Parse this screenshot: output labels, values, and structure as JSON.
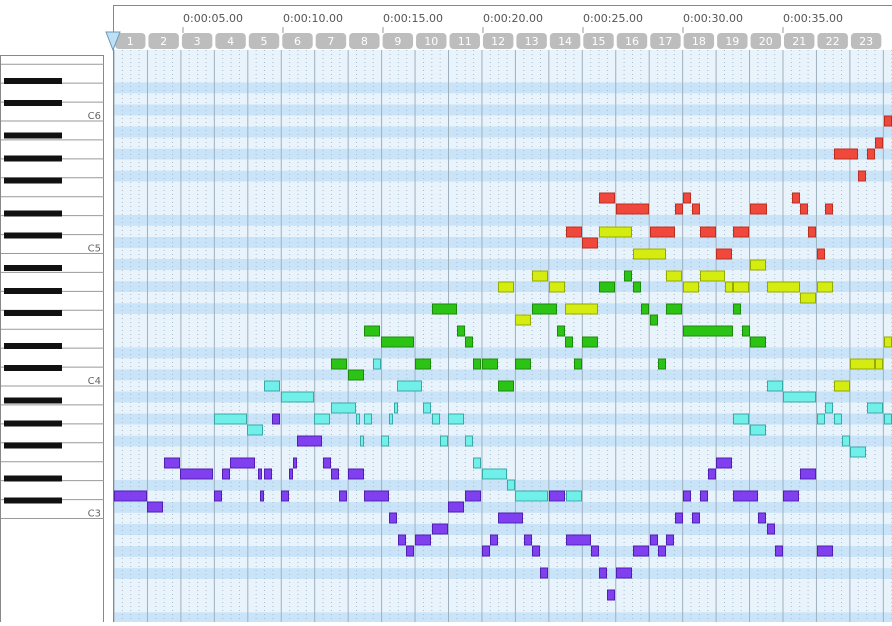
{
  "ruler": {
    "times": [
      "0:00:05.00",
      "0:00:10.00",
      "0:00:15.00",
      "0:00:20.00",
      "0:00:25.00",
      "0:00:30.00",
      "0:00:35.00"
    ],
    "measures": [
      "1",
      "2",
      "3",
      "4",
      "5",
      "6",
      "7",
      "8",
      "9",
      "10",
      "11",
      "12",
      "13",
      "14",
      "15",
      "16",
      "17",
      "18",
      "19",
      "20",
      "21",
      "22",
      "23"
    ]
  },
  "keyboard": {
    "octave_labels": [
      "C6",
      "C5",
      "C4",
      "C3"
    ]
  }
}
